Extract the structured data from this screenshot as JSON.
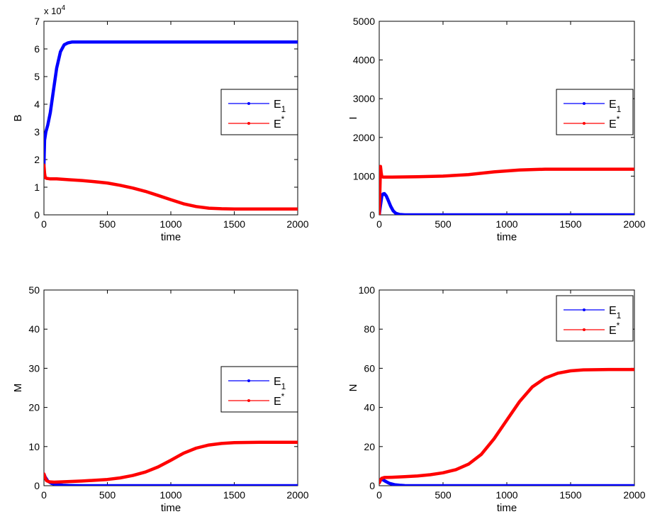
{
  "chart_data": [
    {
      "type": "line",
      "panel": "top-left",
      "xlabel": "time",
      "ylabel": "B",
      "xlim": [
        0,
        2000
      ],
      "ylim": [
        0,
        7
      ],
      "y_exponent_label": "x 10",
      "y_exponent": "4",
      "x_ticks": [
        "0",
        "500",
        "1000",
        "1500",
        "2000"
      ],
      "y_ticks": [
        "0",
        "1",
        "2",
        "3",
        "4",
        "5",
        "6",
        "7"
      ],
      "grid": false,
      "legend": {
        "placement": "right",
        "entries": [
          {
            "base": "E",
            "sub": "1",
            "sup": ""
          },
          {
            "base": "E",
            "sub": "",
            "sup": "*"
          }
        ]
      },
      "series": [
        {
          "color": "#0000ff",
          "x": [
            0,
            5,
            15,
            30,
            50,
            75,
            100,
            130,
            160,
            190,
            220,
            260,
            300,
            500,
            1000,
            1500,
            2000
          ],
          "y": [
            1.8,
            2.7,
            3.0,
            3.25,
            3.7,
            4.5,
            5.3,
            5.9,
            6.15,
            6.22,
            6.25,
            6.25,
            6.25,
            6.25,
            6.25,
            6.25,
            6.25
          ]
        },
        {
          "color": "#ff0000",
          "x": [
            0,
            5,
            10,
            20,
            50,
            100,
            200,
            300,
            400,
            500,
            600,
            700,
            800,
            900,
            1000,
            1100,
            1200,
            1300,
            1400,
            1500,
            1700,
            2000
          ],
          "y": [
            1.8,
            1.5,
            1.35,
            1.32,
            1.3,
            1.3,
            1.27,
            1.24,
            1.2,
            1.15,
            1.07,
            0.97,
            0.85,
            0.7,
            0.55,
            0.4,
            0.3,
            0.24,
            0.22,
            0.21,
            0.21,
            0.21
          ]
        }
      ]
    },
    {
      "type": "line",
      "panel": "top-right",
      "xlabel": "time",
      "ylabel": "I",
      "xlim": [
        0,
        2000
      ],
      "ylim": [
        0,
        5000
      ],
      "x_ticks": [
        "0",
        "500",
        "1000",
        "1500",
        "2000"
      ],
      "y_ticks": [
        "0",
        "1000",
        "2000",
        "3000",
        "4000",
        "5000"
      ],
      "grid": false,
      "legend": {
        "placement": "right",
        "entries": [
          {
            "base": "E",
            "sub": "1",
            "sup": ""
          },
          {
            "base": "E",
            "sub": "",
            "sup": "*"
          }
        ]
      },
      "series": [
        {
          "color": "#0000ff",
          "x": [
            0,
            10,
            20,
            30,
            40,
            55,
            70,
            90,
            110,
            130,
            160,
            200,
            300,
            2000
          ],
          "y": [
            0,
            250,
            480,
            540,
            550,
            490,
            380,
            220,
            100,
            40,
            10,
            0,
            0,
            0
          ]
        },
        {
          "color": "#ff0000",
          "x": [
            0,
            5,
            10,
            15,
            20,
            30,
            50,
            100,
            300,
            500,
            700,
            900,
            1100,
            1300,
            1500,
            2000
          ],
          "y": [
            0,
            600,
            1250,
            1100,
            990,
            975,
            975,
            975,
            985,
            1000,
            1040,
            1110,
            1160,
            1180,
            1180,
            1180
          ]
        }
      ]
    },
    {
      "type": "line",
      "panel": "bottom-left",
      "xlabel": "time",
      "ylabel": "M",
      "xlim": [
        0,
        2000
      ],
      "ylim": [
        0,
        50
      ],
      "x_ticks": [
        "0",
        "500",
        "1000",
        "1500",
        "2000"
      ],
      "y_ticks": [
        "0",
        "10",
        "20",
        "30",
        "40",
        "50"
      ],
      "grid": false,
      "legend": {
        "placement": "right",
        "entries": [
          {
            "base": "E",
            "sub": "1",
            "sup": ""
          },
          {
            "base": "E",
            "sub": "",
            "sup": "*"
          }
        ]
      },
      "series": [
        {
          "color": "#0000ff",
          "x": [
            0,
            10,
            30,
            60,
            100,
            150,
            200,
            300,
            2000
          ],
          "y": [
            3,
            2.2,
            1.2,
            0.6,
            0.3,
            0.1,
            0.05,
            0,
            0
          ]
        },
        {
          "color": "#ff0000",
          "x": [
            0,
            10,
            20,
            40,
            80,
            150,
            300,
            500,
            600,
            700,
            800,
            900,
            1000,
            1100,
            1200,
            1300,
            1400,
            1500,
            1700,
            2000
          ],
          "y": [
            3,
            2.0,
            1.3,
            1.0,
            0.9,
            1.0,
            1.2,
            1.6,
            2.0,
            2.6,
            3.5,
            4.8,
            6.5,
            8.3,
            9.6,
            10.4,
            10.8,
            11.0,
            11.1,
            11.1
          ]
        }
      ]
    },
    {
      "type": "line",
      "panel": "bottom-right",
      "xlabel": "time",
      "ylabel": "N",
      "xlim": [
        0,
        2000
      ],
      "ylim": [
        0,
        100
      ],
      "x_ticks": [
        "0",
        "500",
        "1000",
        "1500",
        "2000"
      ],
      "y_ticks": [
        "0",
        "20",
        "40",
        "60",
        "80",
        "100"
      ],
      "grid": false,
      "legend": {
        "placement": "top-right",
        "entries": [
          {
            "base": "E",
            "sub": "1",
            "sup": ""
          },
          {
            "base": "E",
            "sub": "",
            "sup": "*"
          }
        ]
      },
      "series": [
        {
          "color": "#0000ff",
          "x": [
            0,
            10,
            20,
            30,
            50,
            80,
            120,
            160,
            200,
            300,
            2000
          ],
          "y": [
            1.5,
            2.8,
            3.3,
            3.0,
            2.2,
            1.2,
            0.5,
            0.2,
            0.05,
            0,
            0
          ]
        },
        {
          "color": "#ff0000",
          "x": [
            0,
            10,
            20,
            40,
            100,
            200,
            300,
            400,
            500,
            600,
            700,
            800,
            900,
            1000,
            1100,
            1200,
            1300,
            1400,
            1500,
            1600,
            1800,
            2000
          ],
          "y": [
            1.5,
            3.0,
            3.8,
            4.2,
            4.3,
            4.6,
            5.0,
            5.6,
            6.6,
            8.2,
            11.0,
            16.0,
            24.0,
            33.5,
            43.0,
            50.5,
            55.0,
            57.5,
            58.7,
            59.2,
            59.4,
            59.4
          ]
        }
      ]
    }
  ]
}
